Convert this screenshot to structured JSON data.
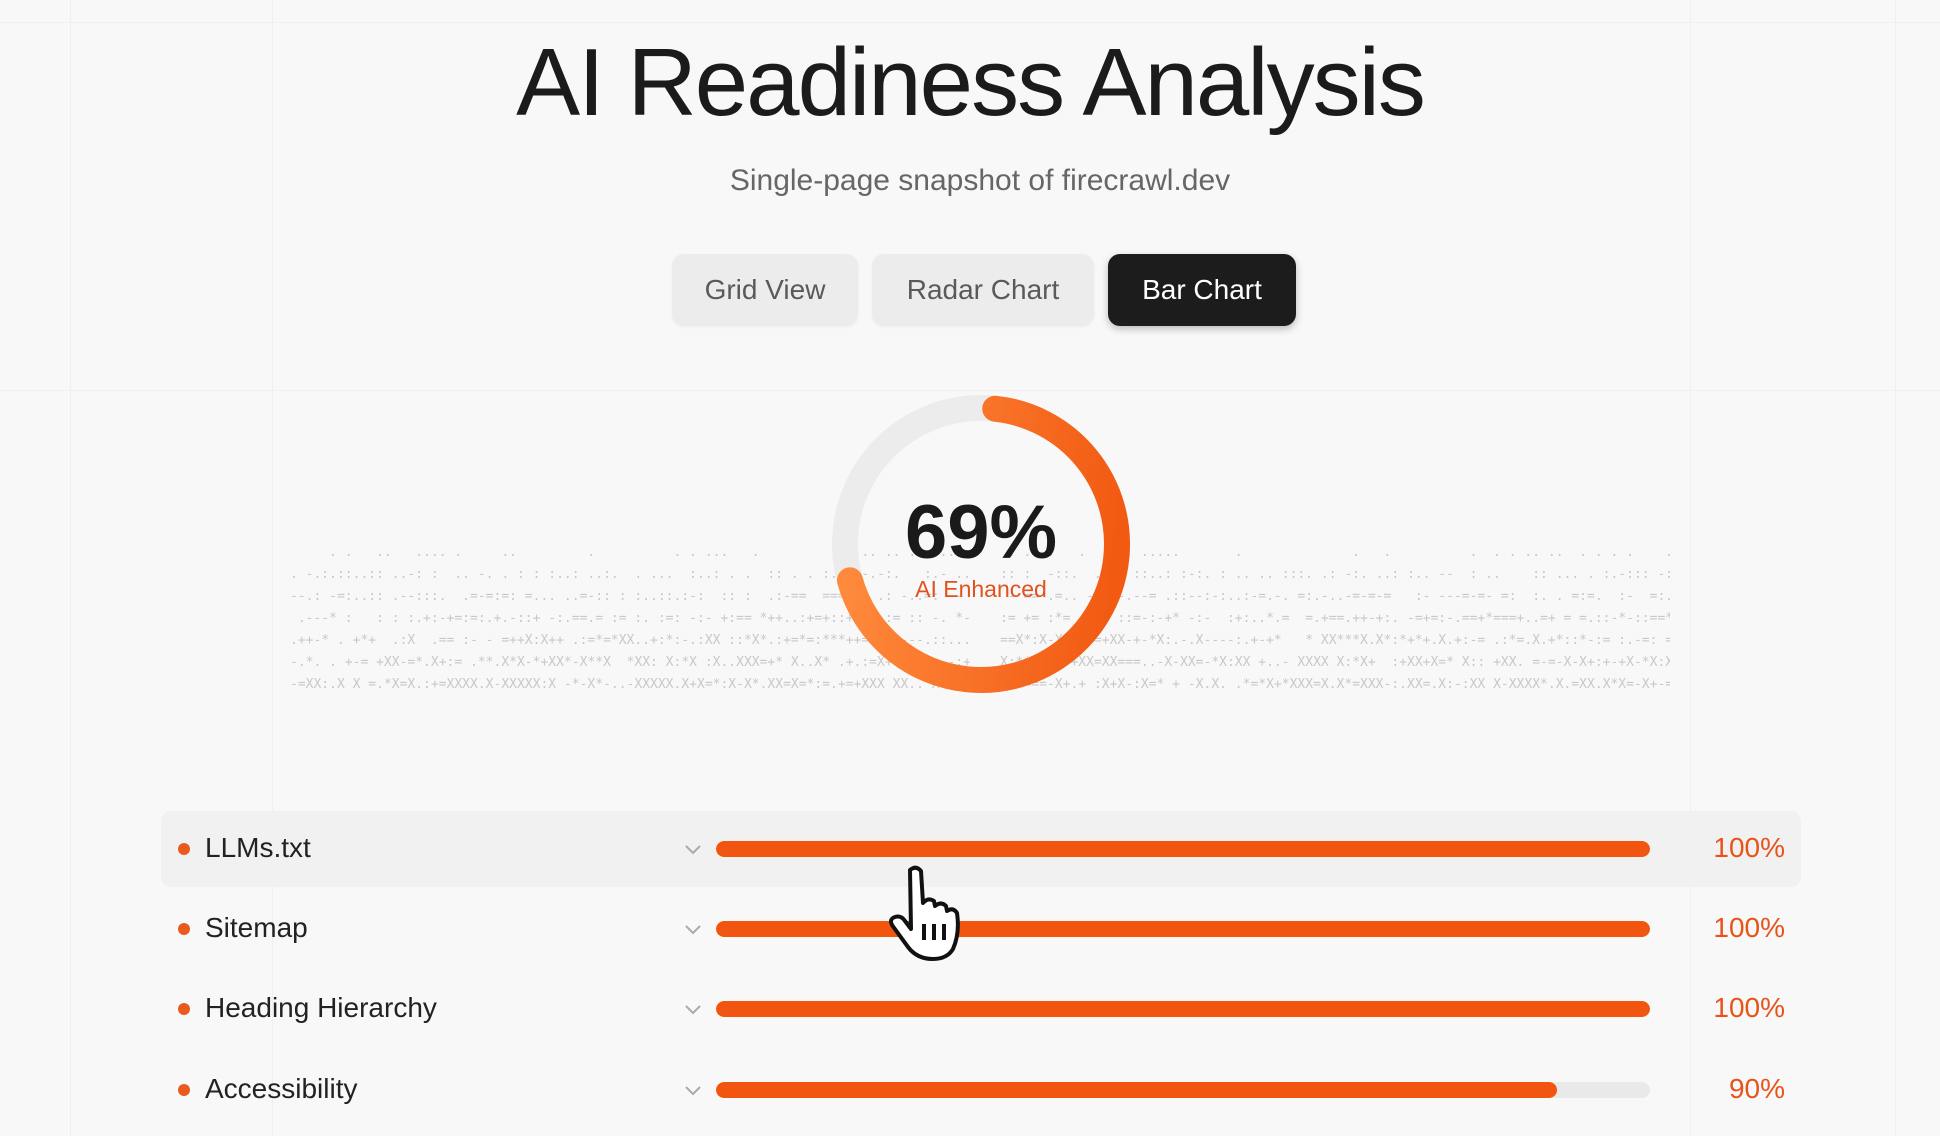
{
  "header": {
    "title": "AI Readiness Analysis",
    "subtitle": "Single-page snapshot of firecrawl.dev"
  },
  "view_tabs": [
    {
      "label": "Grid View",
      "active": false
    },
    {
      "label": "Radar Chart",
      "active": false
    },
    {
      "label": "Bar Chart",
      "active": true
    }
  ],
  "score": {
    "value": "69%",
    "fraction": 0.69,
    "label": "AI Enhanced"
  },
  "colors": {
    "accent": "#f2550f",
    "ring_start": "#ff8a3d",
    "ring_end": "#f25a12",
    "track": "#e9e9e9",
    "active_tab": "#1c1c1c"
  },
  "metrics": [
    {
      "label": "LLMs.txt",
      "percent": 100,
      "value": "100%"
    },
    {
      "label": "Sitemap",
      "percent": 100,
      "value": "100%"
    },
    {
      "label": "Heading Hierarchy",
      "percent": 100,
      "value": "100%"
    },
    {
      "label": "Accessibility",
      "percent": 90,
      "value": "90%"
    }
  ],
  "icons": {
    "row_bullet": "dot",
    "row_expand": "chevron-down-icon",
    "pointer": "hand-pointer-icon"
  }
}
